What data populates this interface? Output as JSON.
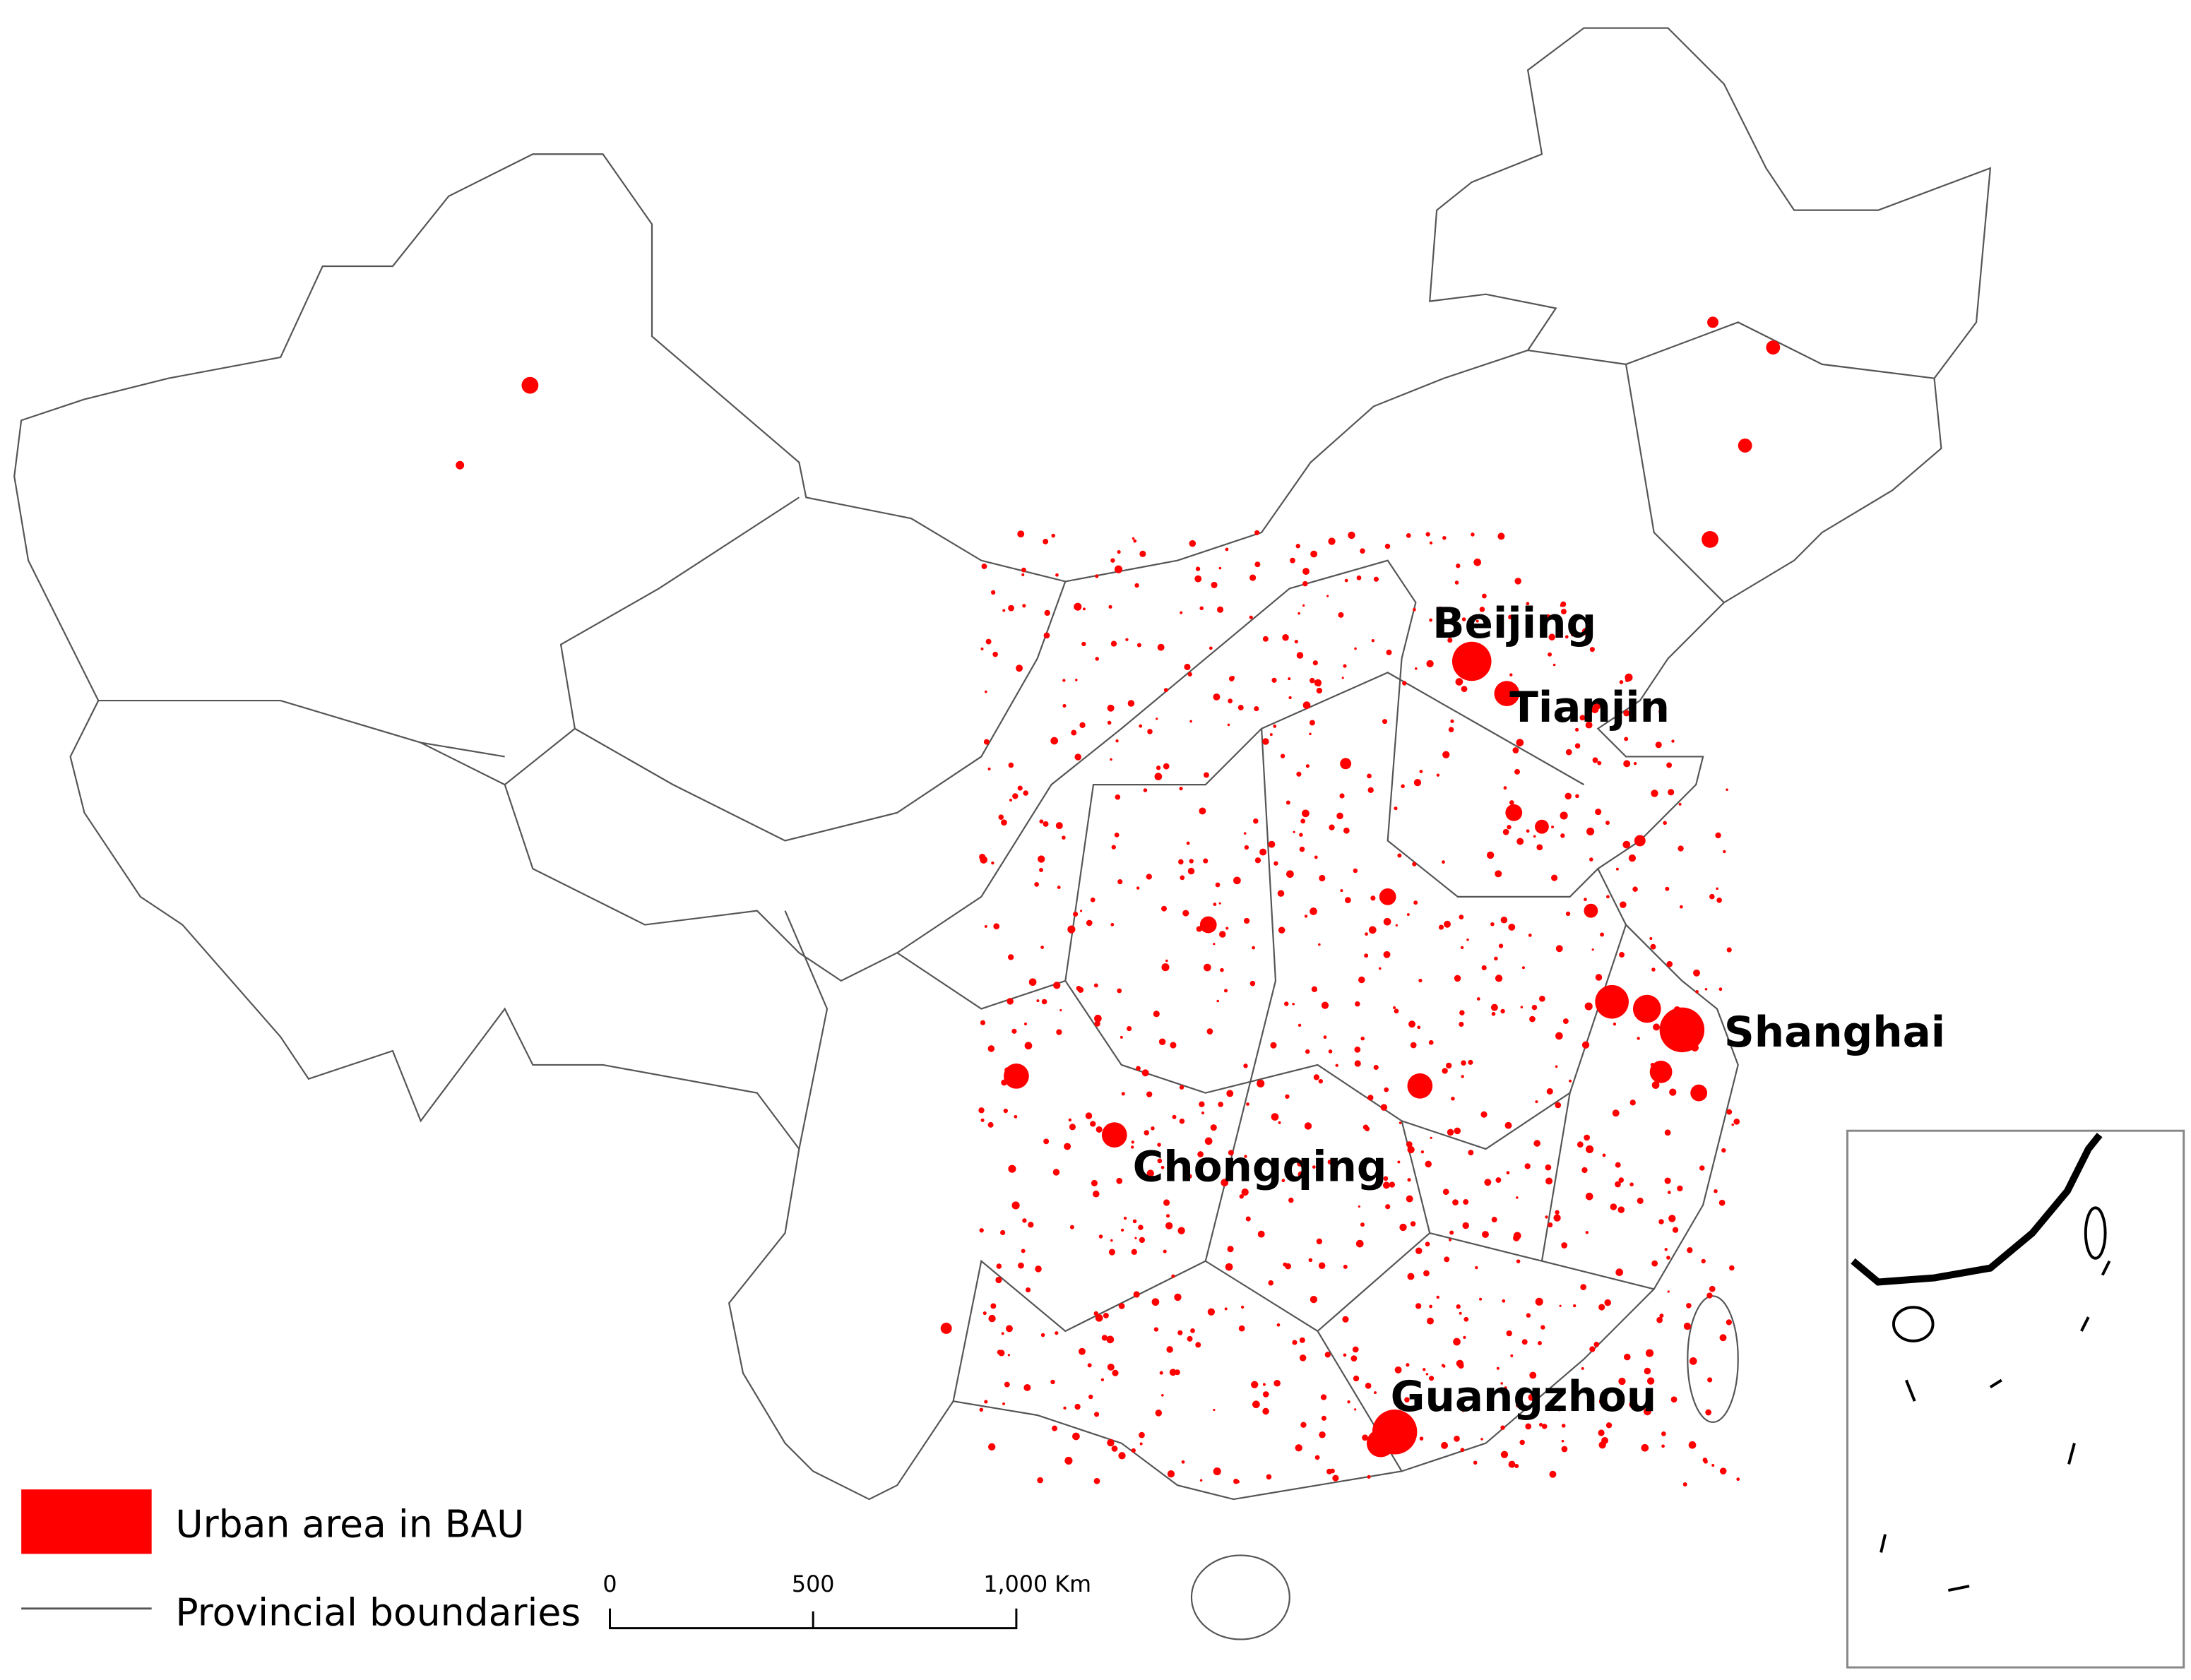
{
  "city_labels": [
    "Beijing",
    "Tianjin",
    "Shanghai",
    "Chongqing",
    "Guangzhou"
  ],
  "legend": {
    "urban": "Urban area in BAU",
    "boundaries": "Provincial boundaries"
  },
  "scale_bar": {
    "ticks": [
      "0",
      "500",
      "1,000 Km"
    ]
  }
}
